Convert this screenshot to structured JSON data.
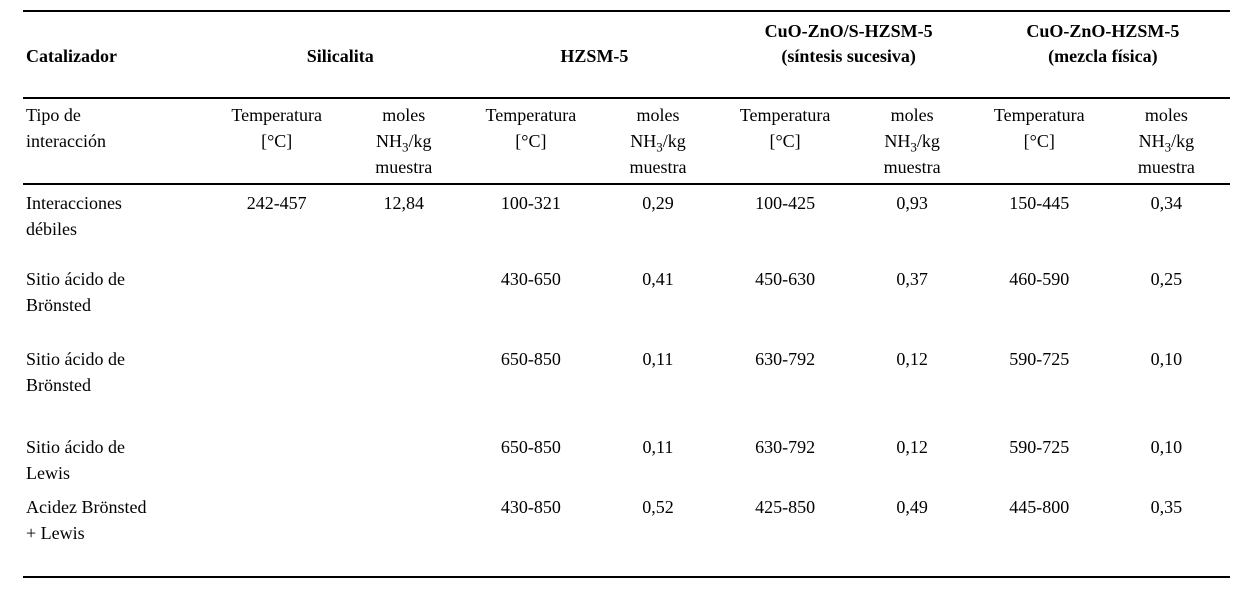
{
  "table": {
    "corner_label": "Catalizador",
    "groups": [
      {
        "line1": "Silicalita",
        "line2": ""
      },
      {
        "line1": "HZSM-5",
        "line2": ""
      },
      {
        "line1": "CuO-ZnO/S-HZSM-5",
        "line2": "(síntesis sucesiva)"
      },
      {
        "line1": "CuO-ZnO-HZSM-5",
        "line2": "(mezcla física)"
      }
    ],
    "sub_header": {
      "col1_line1": "Tipo de",
      "col1_line2": "interacción",
      "temp_line1": "Temperatura",
      "temp_line2": "[°C]",
      "moles_line1": "moles",
      "moles_nh": "NH",
      "moles_sub": "3",
      "moles_kg": "/kg",
      "moles_line3": "muestra"
    },
    "rows": [
      {
        "label_line1": "Interacciones",
        "label_line2": "débiles",
        "values": [
          "242-457",
          "12,84",
          "100-321",
          "0,29",
          "100-425",
          "0,93",
          "150-445",
          "0,34"
        ]
      },
      {
        "label_line1": "Sitio ácido de",
        "label_line2": "Brönsted",
        "values": [
          "",
          "",
          "430-650",
          "0,41",
          "450-630",
          "0,37",
          "460-590",
          "0,25"
        ]
      },
      {
        "label_line1": "Sitio ácido de",
        "label_line2": "Brönsted",
        "values": [
          "",
          "",
          "650-850",
          "0,11",
          "630-792",
          "0,12",
          "590-725",
          "0,10"
        ]
      },
      {
        "label_line1": "Sitio ácido de",
        "label_line2": "Lewis",
        "values": [
          "",
          "",
          "650-850",
          "0,11",
          "630-792",
          "0,12",
          "590-725",
          "0,10"
        ]
      },
      {
        "label_line1": "Acidez Brönsted",
        "label_line2": "+ Lewis",
        "values": [
          "",
          "",
          "430-850",
          "0,52",
          "425-850",
          "0,49",
          "445-800",
          "0,35"
        ]
      }
    ]
  }
}
